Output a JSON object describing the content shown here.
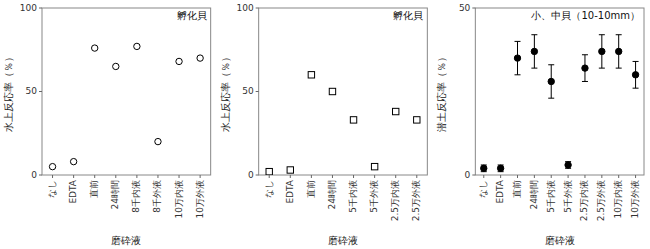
{
  "chart_data": [
    {
      "type": "scatter",
      "title": "孵化貝",
      "ylabel": "水上反応率（％）",
      "xlabel": "磨砕液",
      "categories": [
        "なし",
        "EDTA",
        "直前",
        "24時間",
        "8千内液",
        "8千外液",
        "10万内液",
        "10万外液"
      ],
      "values": [
        5,
        8,
        76,
        65,
        77,
        20,
        68,
        70
      ],
      "marker": "circle",
      "color": "#ffffff",
      "ylim": [
        0,
        100
      ],
      "yticks": [
        0,
        50,
        100
      ],
      "grid": false
    },
    {
      "type": "scatter",
      "title": "孵化貝",
      "ylabel": "水上反応率（％）",
      "xlabel": "磨砕液",
      "categories": [
        "なし",
        "EDTA",
        "直前",
        "24時間",
        "5千内液",
        "5千外液",
        "2.5万内液",
        "2.5万外液"
      ],
      "values": [
        2,
        3,
        60,
        50,
        33,
        5,
        38,
        33
      ],
      "marker": "square",
      "color": "#ffffff",
      "ylim": [
        0,
        100
      ],
      "yticks": [
        0,
        50,
        100
      ],
      "grid": false
    },
    {
      "type": "scatter",
      "title": "小、中貝（10-10mm）",
      "ylabel": "潜土反応率（％）",
      "xlabel": "磨砕液",
      "categories": [
        "なし",
        "EDTA",
        "直前",
        "24時間",
        "5千内液",
        "5千外液",
        "2.5万内液",
        "2.5万外液",
        "10万内液",
        "10万外液"
      ],
      "values": [
        2,
        2,
        35,
        37,
        28,
        3,
        32,
        37,
        37,
        30
      ],
      "errors": [
        1,
        1,
        5,
        5,
        5,
        1,
        4,
        5,
        5,
        4
      ],
      "marker": "circle",
      "color": "#000000",
      "ylim": [
        0,
        50
      ],
      "yticks": [
        0,
        50
      ],
      "grid": false
    }
  ]
}
